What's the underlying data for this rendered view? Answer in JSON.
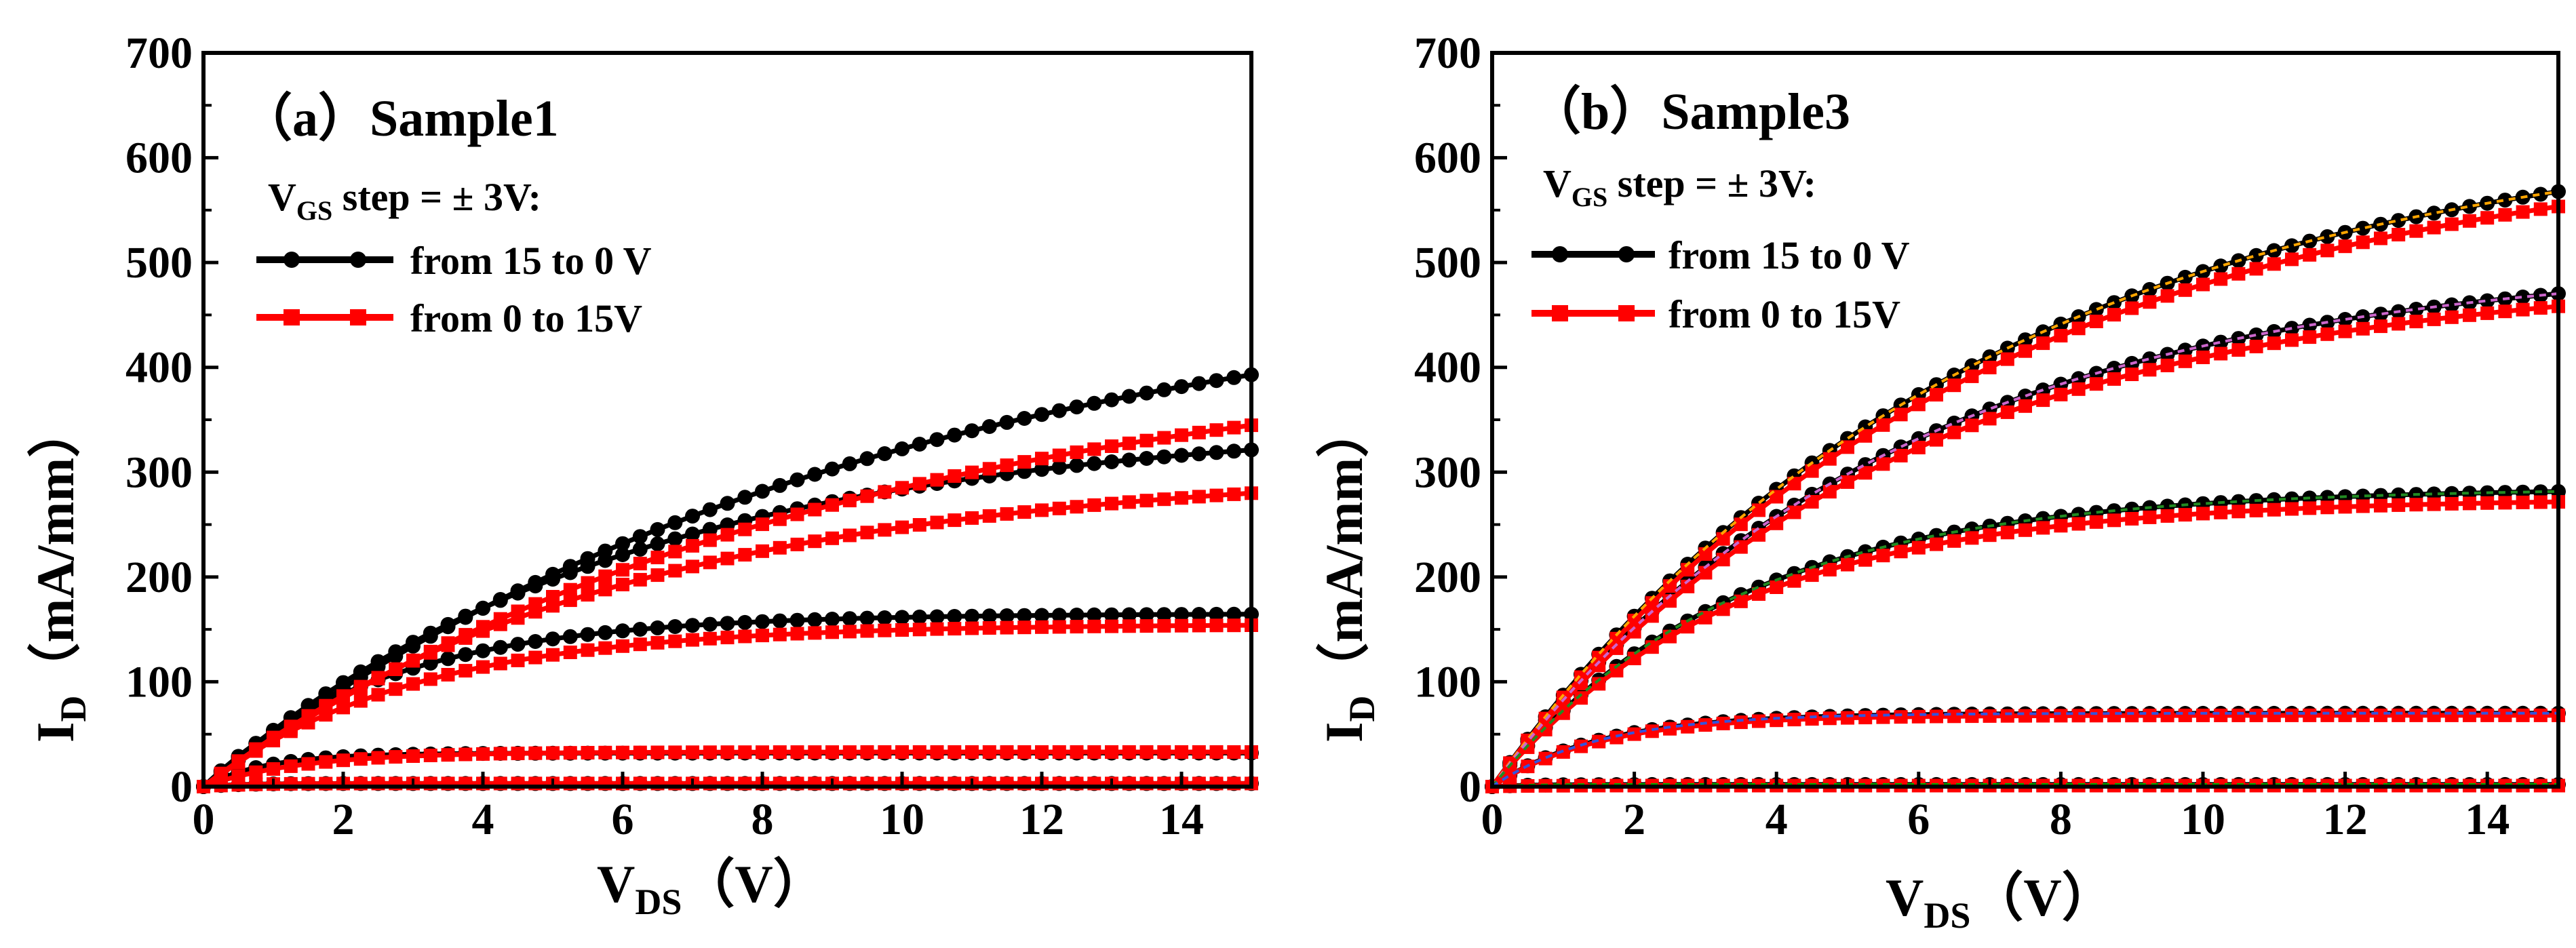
{
  "colors": {
    "down_series": "#000000",
    "up_series": "#ff0000",
    "overlay_curves": [
      "#ffa500",
      "#cc66cc",
      "#228b22",
      "#3355dd",
      "#00aa00"
    ]
  },
  "chart_data": [
    {
      "type": "line",
      "title": "（a）Sample1",
      "xlabel_main": "V",
      "xlabel_sub": "DS",
      "xlabel_unit": "（V）",
      "ylabel_main": "I",
      "ylabel_sub": "D",
      "ylabel_unit": "（mA/mm）",
      "xlim": [
        0,
        15
      ],
      "ylim": [
        0,
        700
      ],
      "xticks": [
        0,
        2,
        4,
        6,
        8,
        10,
        12,
        14
      ],
      "yticks": [
        0,
        100,
        200,
        300,
        400,
        500,
        600,
        700
      ],
      "legend_title_main": "V",
      "legend_title_sub": "GS",
      "legend_title_rest": " step = ± 3V:",
      "legend": [
        {
          "label": "from 15 to 0 V",
          "color": "#000000",
          "marker": "circle"
        },
        {
          "label": "from 0 to 15V",
          "color": "#ff0000",
          "marker": "square"
        }
      ],
      "series": [
        {
          "name": "from 15 to 0 V",
          "color": "#000000",
          "marker": "circle",
          "curves": [
            {
              "sat": 495,
              "tau": 9.5
            },
            {
              "sat": 350,
              "tau": 6.0
            },
            {
              "sat": 165,
              "tau": 2.6
            },
            {
              "sat": 32,
              "tau": 0.9
            },
            {
              "sat": 3,
              "tau": 0.5
            }
          ]
        },
        {
          "name": "from 0 to 15V",
          "color": "#ff0000",
          "marker": "square",
          "curves": [
            {
              "sat": 425,
              "tau": 9.0
            },
            {
              "sat": 305,
              "tau": 6.0
            },
            {
              "sat": 155,
              "tau": 3.0
            },
            {
              "sat": 33,
              "tau": 1.4
            },
            {
              "sat": 3,
              "tau": 0.6
            }
          ]
        }
      ]
    },
    {
      "type": "line",
      "title": "（b）Sample3",
      "xlabel_main": "V",
      "xlabel_sub": "DS",
      "xlabel_unit": "（V）",
      "ylabel_main": "I",
      "ylabel_sub": "D",
      "ylabel_unit": "（mA/mm）",
      "xlim": [
        0,
        15
      ],
      "ylim": [
        0,
        700
      ],
      "xticks": [
        0,
        2,
        4,
        6,
        8,
        10,
        12,
        14
      ],
      "yticks": [
        0,
        100,
        200,
        300,
        400,
        500,
        600,
        700
      ],
      "legend_title_main": "V",
      "legend_title_sub": "GS",
      "legend_title_rest": " step = ± 3V:",
      "legend": [
        {
          "label": "from 15 to 0 V",
          "color": "#000000",
          "marker": "circle"
        },
        {
          "label": "from 0 to 15V",
          "color": "#ff0000",
          "marker": "square"
        }
      ],
      "series": [
        {
          "name": "from 15 to 0 V",
          "color": "#000000",
          "marker": "circle",
          "curves": [
            {
              "sat": 638,
              "tau": 6.8
            },
            {
              "sat": 505,
              "tau": 5.6
            },
            {
              "sat": 285,
              "tau": 3.4
            },
            {
              "sat": 70,
              "tau": 1.5
            },
            {
              "sat": 2,
              "tau": 0.5
            }
          ]
        },
        {
          "name": "from 0 to 15V",
          "color": "#ff0000",
          "marker": "square",
          "curves": [
            {
              "sat": 622,
              "tau": 6.8
            },
            {
              "sat": 492,
              "tau": 5.6
            },
            {
              "sat": 275,
              "tau": 3.4
            },
            {
              "sat": 68,
              "tau": 1.5
            },
            {
              "sat": 1,
              "tau": 0.5
            }
          ]
        }
      ]
    }
  ]
}
